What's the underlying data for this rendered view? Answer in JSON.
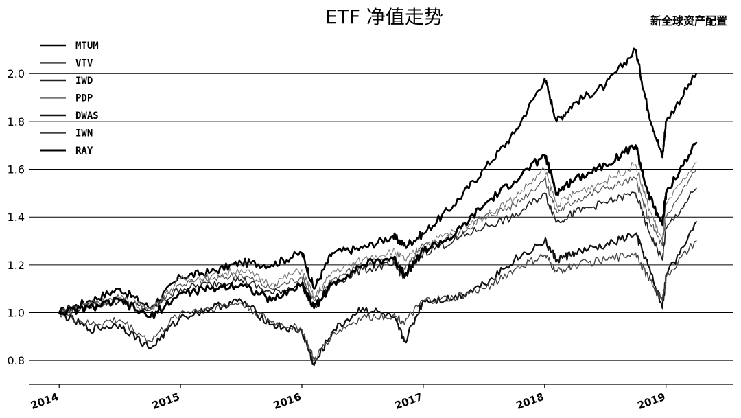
{
  "chart_data": {
    "type": "line",
    "title": "ETF 净值走势",
    "watermark": "新全球资产配置",
    "xlabel": "",
    "ylabel": "",
    "x_ticks": [
      "2014",
      "2015",
      "2016",
      "2017",
      "2018",
      "2019"
    ],
    "y_ticks": [
      "0.8",
      "1.0",
      "1.2",
      "1.4",
      "1.6",
      "1.8",
      "2.0"
    ],
    "xlim": [
      2013.75,
      2019.55
    ],
    "ylim": [
      0.7,
      2.15
    ],
    "grid": "horizontal",
    "legend_position": "top-left",
    "x": [
      2014.0,
      2014.25,
      2014.5,
      2014.75,
      2015.0,
      2015.25,
      2015.5,
      2015.75,
      2016.0,
      2016.1,
      2016.25,
      2016.5,
      2016.75,
      2016.85,
      2017.0,
      2017.25,
      2017.5,
      2017.75,
      2018.0,
      2018.1,
      2018.25,
      2018.5,
      2018.75,
      2018.85,
      2018.97,
      2019.0,
      2019.25
    ],
    "series": [
      {
        "name": "MTUM",
        "color": "#000000",
        "width": 2.6,
        "values": [
          1.0,
          1.05,
          1.1,
          1.02,
          1.15,
          1.17,
          1.21,
          1.2,
          1.25,
          1.1,
          1.25,
          1.27,
          1.32,
          1.28,
          1.33,
          1.45,
          1.6,
          1.75,
          1.98,
          1.8,
          1.88,
          1.95,
          2.1,
          1.85,
          1.65,
          1.8,
          2.0
        ]
      },
      {
        "name": "VTV",
        "color": "#555555",
        "width": 1.2,
        "values": [
          1.0,
          1.04,
          1.06,
          1.02,
          1.12,
          1.14,
          1.16,
          1.1,
          1.15,
          1.05,
          1.14,
          1.2,
          1.22,
          1.18,
          1.28,
          1.32,
          1.4,
          1.45,
          1.56,
          1.42,
          1.47,
          1.52,
          1.56,
          1.4,
          1.28,
          1.4,
          1.6
        ]
      },
      {
        "name": "IWD",
        "color": "#222222",
        "width": 1.6,
        "values": [
          1.0,
          1.03,
          1.05,
          1.01,
          1.1,
          1.12,
          1.14,
          1.08,
          1.12,
          1.02,
          1.12,
          1.18,
          1.2,
          1.15,
          1.25,
          1.3,
          1.36,
          1.4,
          1.5,
          1.38,
          1.42,
          1.46,
          1.5,
          1.35,
          1.22,
          1.35,
          1.52
        ]
      },
      {
        "name": "PDP",
        "color": "#777777",
        "width": 1.1,
        "values": [
          1.0,
          1.04,
          1.06,
          1.01,
          1.14,
          1.15,
          1.18,
          1.12,
          1.18,
          1.06,
          1.17,
          1.22,
          1.26,
          1.22,
          1.28,
          1.34,
          1.4,
          1.48,
          1.6,
          1.45,
          1.5,
          1.55,
          1.62,
          1.45,
          1.3,
          1.45,
          1.63
        ]
      },
      {
        "name": "DWAS",
        "color": "#111111",
        "width": 2.2,
        "values": [
          1.0,
          0.93,
          0.95,
          0.85,
          0.98,
          1.02,
          1.05,
          0.95,
          0.92,
          0.78,
          0.92,
          1.02,
          0.98,
          0.88,
          1.05,
          1.06,
          1.12,
          1.22,
          1.3,
          1.22,
          1.25,
          1.28,
          1.33,
          1.2,
          1.02,
          1.15,
          1.38
        ]
      },
      {
        "name": "IWN",
        "color": "#444444",
        "width": 1.4,
        "values": [
          1.0,
          0.95,
          0.97,
          0.88,
          1.0,
          1.02,
          1.04,
          0.96,
          0.93,
          0.8,
          0.91,
          0.98,
          0.99,
          0.96,
          1.05,
          1.06,
          1.1,
          1.18,
          1.24,
          1.17,
          1.2,
          1.22,
          1.25,
          1.15,
          1.05,
          1.15,
          1.3
        ]
      },
      {
        "name": "RAY",
        "color": "#000000",
        "width": 3.0,
        "values": [
          1.0,
          1.02,
          1.05,
          0.98,
          1.08,
          1.1,
          1.12,
          1.05,
          1.12,
          1.02,
          1.12,
          1.2,
          1.23,
          1.16,
          1.26,
          1.32,
          1.45,
          1.55,
          1.66,
          1.5,
          1.56,
          1.62,
          1.7,
          1.5,
          1.37,
          1.5,
          1.71
        ]
      }
    ]
  }
}
